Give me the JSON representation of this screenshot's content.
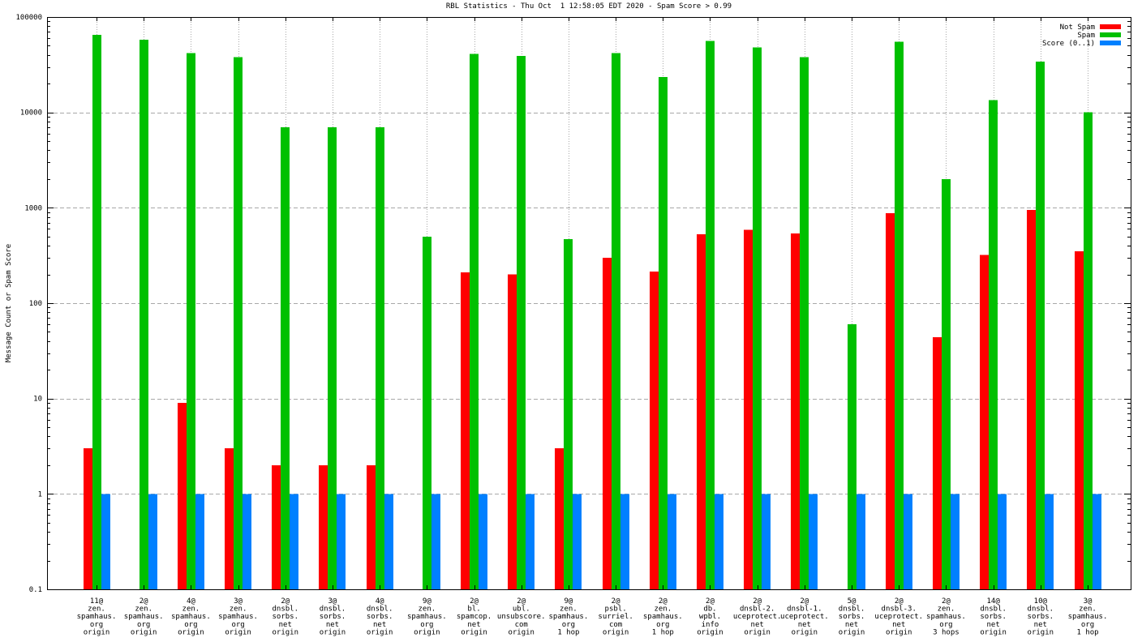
{
  "chart_data": {
    "type": "bar",
    "title": "RBL Statistics - Thu Oct  1 12:58:05 EDT 2020 - Spam Score > 0.99",
    "ylabel": "Message Count or Spam Score",
    "y_scale": "log",
    "ylim": [
      0.1,
      100000
    ],
    "ytick_labels": [
      "100000",
      "10000",
      "1000",
      "100",
      "10",
      "1",
      "0.1"
    ],
    "grid": true,
    "legend_position": "top-right-inside",
    "categories": [
      [
        "11@",
        "zen.",
        "spamhaus.",
        "org",
        "origin"
      ],
      [
        "2@",
        "zen.",
        "spamhaus.",
        "org",
        "origin"
      ],
      [
        "4@",
        "zen.",
        "spamhaus.",
        "org",
        "origin"
      ],
      [
        "3@",
        "zen.",
        "spamhaus.",
        "org",
        "origin"
      ],
      [
        "2@",
        "dnsbl.",
        "sorbs.",
        "net",
        "origin"
      ],
      [
        "3@",
        "dnsbl.",
        "sorbs.",
        "net",
        "origin"
      ],
      [
        "4@",
        "dnsbl.",
        "sorbs.",
        "net",
        "origin"
      ],
      [
        "9@",
        "zen.",
        "spamhaus.",
        "org",
        "origin"
      ],
      [
        "2@",
        "bl.",
        "spamcop.",
        "net",
        "origin"
      ],
      [
        "2@",
        "ubl.",
        "unsubscore.",
        "com",
        "origin"
      ],
      [
        "9@",
        "zen.",
        "spamhaus.",
        "org",
        "1 hop"
      ],
      [
        "2@",
        "psbl.",
        "surriel.",
        "com",
        "origin"
      ],
      [
        "2@",
        "zen.",
        "spamhaus.",
        "org",
        "1 hop"
      ],
      [
        "2@",
        "db.",
        "wpbl.",
        "info",
        "origin"
      ],
      [
        "2@",
        "dnsbl-2.",
        "uceprotect.",
        "net",
        "origin"
      ],
      [
        "2@",
        "dnsbl-1.",
        "uceprotect.",
        "net",
        "origin"
      ],
      [
        "5@",
        "dnsbl.",
        "sorbs.",
        "net",
        "origin"
      ],
      [
        "2@",
        "dnsbl-3.",
        "uceprotect.",
        "net",
        "origin"
      ],
      [
        "2@",
        "zen.",
        "spamhaus.",
        "org",
        "3 hops"
      ],
      [
        "14@",
        "dnsbl.",
        "sorbs.",
        "net",
        "origin"
      ],
      [
        "10@",
        "dnsbl.",
        "sorbs.",
        "net",
        "origin"
      ],
      [
        "3@",
        "zen.",
        "spamhaus.",
        "org",
        "1 hop"
      ]
    ],
    "series": [
      {
        "name": "Not Spam",
        "color": "#ff0000",
        "values": [
          3,
          null,
          9,
          3,
          2,
          2,
          2,
          null,
          210,
          200,
          3,
          300,
          215,
          530,
          590,
          540,
          null,
          880,
          44,
          320,
          950,
          350
        ]
      },
      {
        "name": "Spam",
        "color": "#00c000",
        "values": [
          65000,
          58000,
          42000,
          38000,
          7000,
          7000,
          7000,
          500,
          41000,
          39000,
          470,
          42000,
          23500,
          56000,
          48000,
          38000,
          60,
          55000,
          2000,
          13500,
          34000,
          10000
        ]
      },
      {
        "name": "Score (0..1)",
        "color": "#0080ff",
        "values": [
          1,
          1,
          1,
          1,
          1,
          1,
          1,
          1,
          1,
          1,
          1,
          1,
          1,
          1,
          1,
          1,
          1,
          1,
          1,
          1,
          1,
          1
        ]
      }
    ]
  },
  "colors": {
    "background": "#ffffff",
    "border": "#000000",
    "grid": "#a8a8a8",
    "text": "#000000"
  }
}
